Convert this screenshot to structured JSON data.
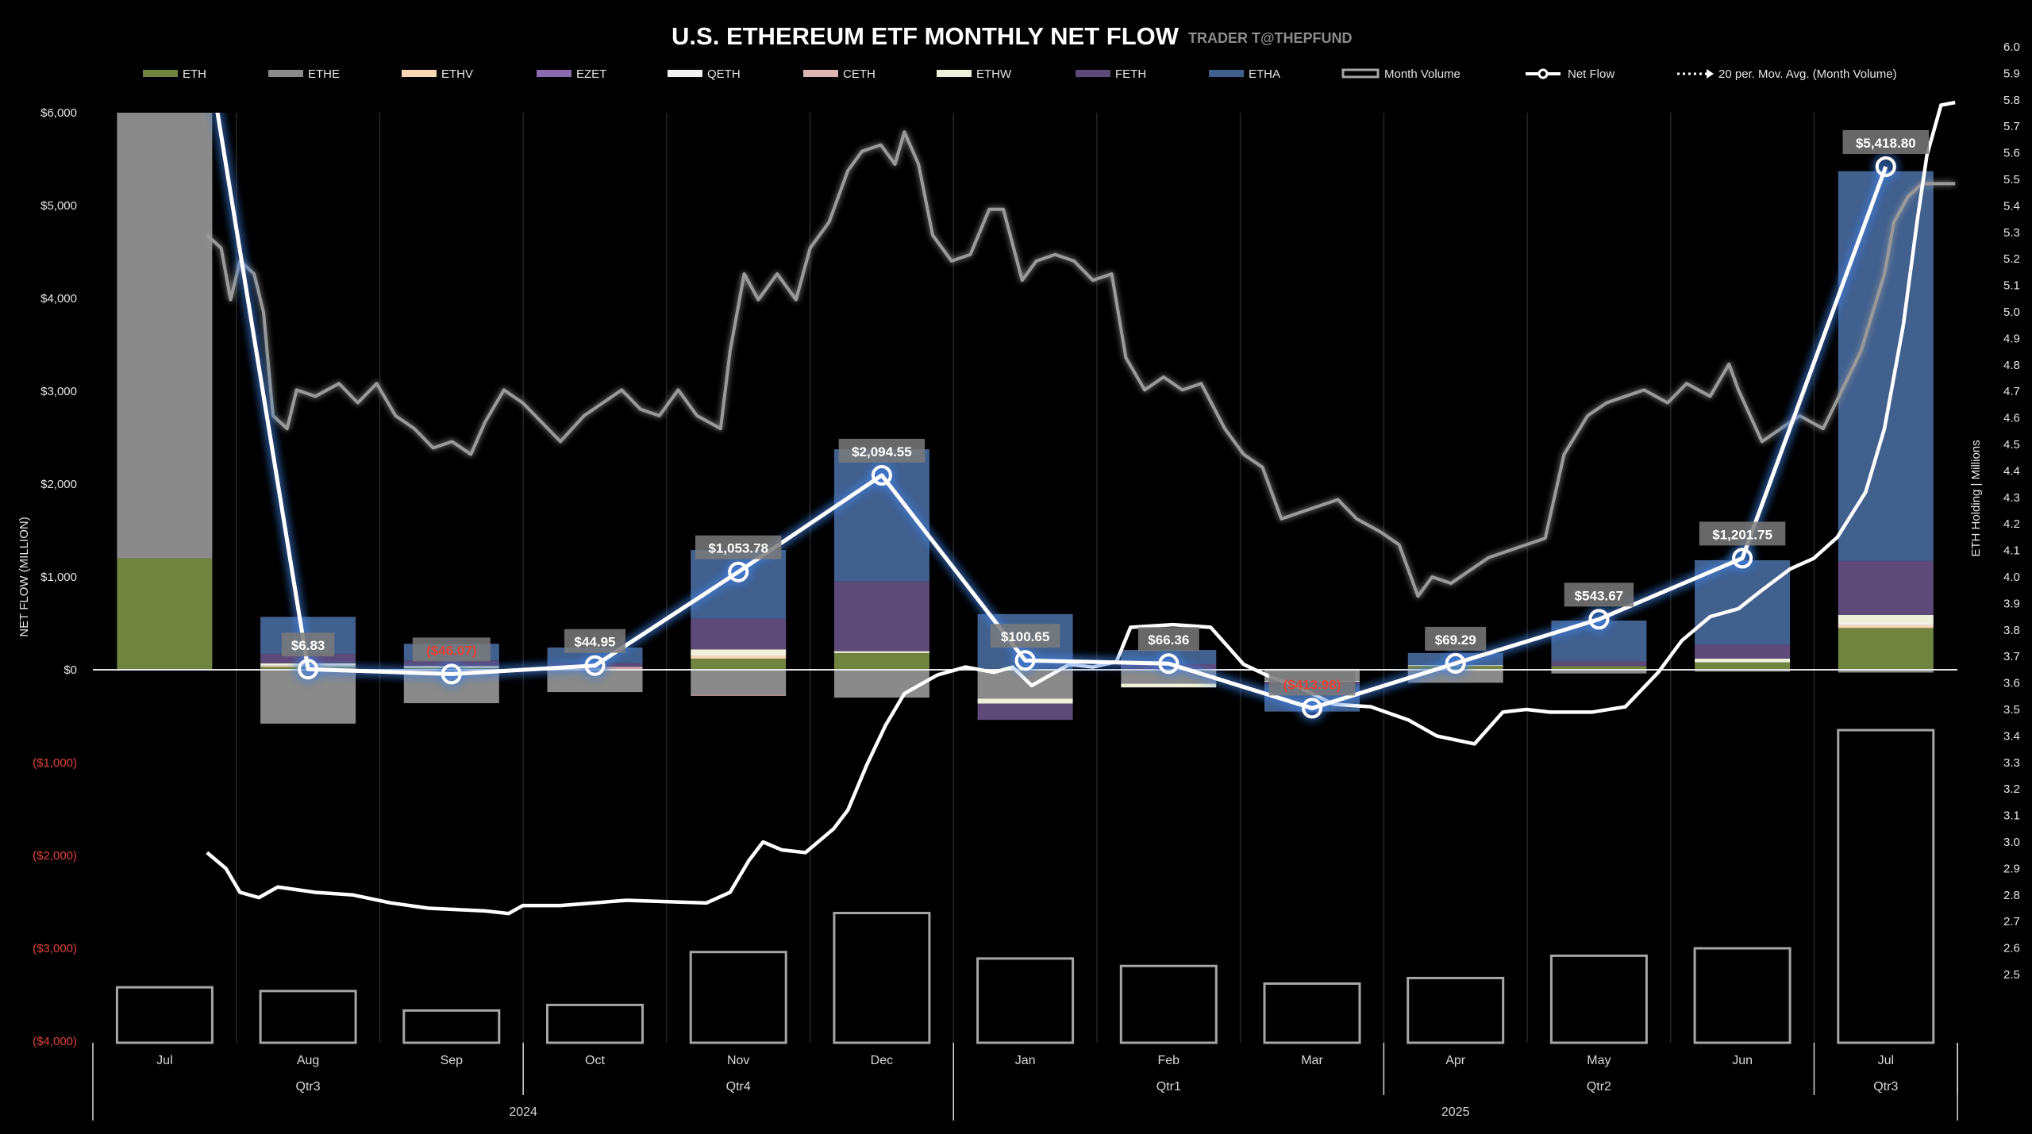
{
  "title": "U.S. ETHEREUM ETF MONTHLY NET FLOW",
  "subtitle": "TRADER T@THEPFUND",
  "chart_data": {
    "type": "bar",
    "categories": [
      "Jul",
      "Aug",
      "Sep",
      "Oct",
      "Nov",
      "Dec",
      "Jan",
      "Feb",
      "Mar",
      "Apr",
      "May",
      "Jun",
      "Jul"
    ],
    "quarters": [
      {
        "label": "Qtr3",
        "months": 3
      },
      {
        "label": "Qtr4",
        "months": 3
      },
      {
        "label": "Qtr1",
        "months": 3
      },
      {
        "label": "Qtr2",
        "months": 3
      },
      {
        "label": "Qtr3",
        "months": 1
      }
    ],
    "years": [
      {
        "label": "2024",
        "months": 6
      },
      {
        "label": "2025",
        "months": 7
      }
    ],
    "ylabel": "NET FLOW (MILLION)",
    "ylim": [
      -4000,
      6000
    ],
    "yticks": [
      6000,
      5000,
      4000,
      3000,
      2000,
      1000,
      0,
      -1000,
      -2000,
      -3000,
      -4000
    ],
    "ytick_labels": [
      "$6,000",
      "$5,000",
      "$4,000",
      "$3,000",
      "$2,000",
      "$1,000",
      "$0",
      "($1,000)",
      "($2,000)",
      "($3,000)",
      "($4,000)"
    ],
    "y2label": "ETH Holding | Millions",
    "y2lim": [
      2.5,
      6.0
    ],
    "y2tick_labels": [
      "6.0",
      "5.9",
      "5.8",
      "5.7",
      "5.6",
      "5.5",
      "5.4",
      "5.3",
      "5.2",
      "5.1",
      "5.0",
      "4.9",
      "4.8",
      "4.7",
      "4.6",
      "4.5",
      "4.4",
      "4.3",
      "4.2",
      "4.1",
      "4.0",
      "3.9",
      "3.8",
      "3.7",
      "3.6",
      "3.5",
      "3.4",
      "3.3",
      "3.2",
      "3.1",
      "3.0",
      "2.9",
      "2.8",
      "2.7",
      "2.6",
      "2.5"
    ],
    "legend_position": "top",
    "grid": false,
    "series": [
      {
        "name": "ETH",
        "color": "#70843f",
        "values": [
          1200,
          30,
          20,
          10,
          120,
          180,
          0,
          0,
          10,
          40,
          40,
          80,
          450
        ]
      },
      {
        "name": "ETHE",
        "color": "#8a8a8a",
        "values": [
          4800,
          -580,
          -360,
          -240,
          -270,
          -300,
          -310,
          -150,
          -120,
          -140,
          -40,
          -20,
          -30
        ]
      },
      {
        "name": "ETHV",
        "color": "#f7d5b5",
        "values": [
          0,
          10,
          0,
          0,
          30,
          0,
          0,
          0,
          0,
          0,
          0,
          0,
          30
        ]
      },
      {
        "name": "EZET",
        "color": "#8a6bb0",
        "values": [
          0,
          0,
          0,
          0,
          0,
          0,
          0,
          0,
          0,
          0,
          0,
          0,
          0
        ]
      },
      {
        "name": "QETH",
        "color": "#f2f2f2",
        "values": [
          0,
          10,
          0,
          0,
          0,
          0,
          0,
          0,
          0,
          0,
          0,
          0,
          20
        ]
      },
      {
        "name": "CETH",
        "color": "#dcb4b4",
        "values": [
          0,
          0,
          0,
          20,
          -10,
          0,
          0,
          0,
          0,
          0,
          0,
          0,
          0
        ]
      },
      {
        "name": "ETHW",
        "color": "#eff0dc",
        "values": [
          0,
          20,
          20,
          0,
          70,
          20,
          -55,
          -40,
          -10,
          10,
          0,
          40,
          90
        ]
      },
      {
        "name": "FETH",
        "color": "#5d4a78",
        "values": [
          0,
          100,
          60,
          40,
          330,
          750,
          -175,
          60,
          -30,
          0,
          50,
          150,
          580
        ]
      },
      {
        "name": "ETHA",
        "color": "#42608e",
        "values": [
          0,
          400,
          180,
          170,
          740,
          1425,
          600,
          154,
          -290,
          130,
          440,
          910,
          4200
        ]
      }
    ],
    "month_volume": {
      "name": "Month Volume",
      "values": [
        580,
        540,
        330,
        390,
        960,
        1380,
        890,
        810,
        620,
        680,
        920,
        1000,
        3350
      ]
    },
    "net_flow": {
      "name": "Net Flow",
      "values": [
        9500,
        6.83,
        -46.07,
        44.95,
        1053.78,
        2094.55,
        100.65,
        66.36,
        -413.98,
        69.29,
        543.67,
        1201.75,
        5418.8
      ],
      "labels": [
        null,
        "$6.83",
        "($46.07)",
        "$44.95",
        "$1,053.78",
        "$2,094.55",
        "$100.65",
        "$66.36",
        "($413.98)",
        "$69.29",
        "$543.67",
        "$1,201.75",
        "$5,418.80"
      ]
    },
    "moving_average": {
      "name": "20 per. Mov. Avg. (Month Volume)",
      "points": [
        [
          "2024-07-24",
          4681
        ],
        [
          "2024-07-27",
          4542
        ],
        [
          "2024-07-29",
          3986
        ],
        [
          "2024-07-31",
          4403
        ],
        [
          "2024-08-03",
          4264
        ],
        [
          "2024-08-05",
          3847
        ],
        [
          "2024-08-07",
          2736
        ],
        [
          "2024-08-10",
          2597
        ],
        [
          "2024-08-12",
          3014
        ],
        [
          "2024-08-16",
          2945
        ],
        [
          "2024-08-21",
          3083
        ],
        [
          "2024-08-25",
          2875
        ],
        [
          "2024-08-29",
          3083
        ],
        [
          "2024-09-02",
          2736
        ],
        [
          "2024-09-06",
          2597
        ],
        [
          "2024-09-10",
          2389
        ],
        [
          "2024-09-14",
          2458
        ],
        [
          "2024-09-18",
          2320
        ],
        [
          "2024-09-21",
          2667
        ],
        [
          "2024-09-25",
          3014
        ],
        [
          "2024-09-29",
          2875
        ],
        [
          "2024-10-03",
          2667
        ],
        [
          "2024-10-07",
          2458
        ],
        [
          "2024-10-12",
          2736
        ],
        [
          "2024-10-16",
          2875
        ],
        [
          "2024-10-20",
          3014
        ],
        [
          "2024-10-24",
          2806
        ],
        [
          "2024-10-28",
          2736
        ],
        [
          "2024-11-01",
          3014
        ],
        [
          "2024-11-05",
          2736
        ],
        [
          "2024-11-10",
          2597
        ],
        [
          "2024-11-12",
          3431
        ],
        [
          "2024-11-15",
          4264
        ],
        [
          "2024-11-18",
          3986
        ],
        [
          "2024-11-22",
          4264
        ],
        [
          "2024-11-26",
          3986
        ],
        [
          "2024-11-29",
          4542
        ],
        [
          "2024-12-03",
          4820
        ],
        [
          "2024-12-07",
          5375
        ],
        [
          "2024-12-10",
          5584
        ],
        [
          "2024-12-14",
          5653
        ],
        [
          "2024-12-17",
          5445
        ],
        [
          "2024-12-19",
          5792
        ],
        [
          "2024-12-22",
          5445
        ],
        [
          "2024-12-25",
          4681
        ],
        [
          "2024-12-29",
          4403
        ],
        [
          "2025-01-02",
          4472
        ],
        [
          "2025-01-06",
          4959
        ],
        [
          "2025-01-09",
          4959
        ],
        [
          "2025-01-13",
          4195
        ],
        [
          "2025-01-16",
          4403
        ],
        [
          "2025-01-20",
          4472
        ],
        [
          "2025-01-24",
          4403
        ],
        [
          "2025-01-28",
          4195
        ],
        [
          "2025-02-01",
          4264
        ],
        [
          "2025-02-04",
          3361
        ],
        [
          "2025-02-08",
          3014
        ],
        [
          "2025-02-12",
          3153
        ],
        [
          "2025-02-16",
          3014
        ],
        [
          "2025-02-20",
          3083
        ],
        [
          "2025-02-25",
          2597
        ],
        [
          "2025-03-01",
          2320
        ],
        [
          "2025-03-05",
          2181
        ],
        [
          "2025-03-09",
          1625
        ],
        [
          "2025-03-13",
          1695
        ],
        [
          "2025-03-17",
          1764
        ],
        [
          "2025-03-21",
          1833
        ],
        [
          "2025-03-25",
          1625
        ],
        [
          "2025-03-30",
          1486
        ],
        [
          "2025-04-03",
          1347
        ],
        [
          "2025-04-07",
          792
        ],
        [
          "2025-04-10",
          1000
        ],
        [
          "2025-04-14",
          931
        ],
        [
          "2025-04-18",
          1070
        ],
        [
          "2025-04-22",
          1208
        ],
        [
          "2025-04-26",
          1278
        ],
        [
          "2025-04-30",
          1347
        ],
        [
          "2025-05-04",
          1417
        ],
        [
          "2025-05-08",
          2320
        ],
        [
          "2025-05-13",
          2736
        ],
        [
          "2025-05-17",
          2875
        ],
        [
          "2025-05-21",
          2945
        ],
        [
          "2025-05-25",
          3014
        ],
        [
          "2025-05-30",
          2875
        ],
        [
          "2025-06-03",
          3083
        ],
        [
          "2025-06-08",
          2945
        ],
        [
          "2025-06-12",
          3292
        ],
        [
          "2025-06-14",
          3014
        ],
        [
          "2025-06-19",
          2458
        ],
        [
          "2025-06-23",
          2597
        ],
        [
          "2025-06-27",
          2736
        ],
        [
          "2025-07-02",
          2597
        ],
        [
          "2025-07-06",
          3014
        ],
        [
          "2025-07-10",
          3431
        ],
        [
          "2025-07-15",
          4264
        ],
        [
          "2025-07-17",
          4820
        ],
        [
          "2025-07-20",
          5097
        ],
        [
          "2025-07-23",
          5236
        ],
        [
          "2025-07-27",
          5236
        ],
        [
          "2025-07-30",
          5236
        ]
      ]
    },
    "eth_holding": {
      "axis": "right",
      "points": [
        [
          "2024-07-24",
          2.96
        ],
        [
          "2024-07-28",
          2.9
        ],
        [
          "2024-07-31",
          2.81
        ],
        [
          "2024-08-04",
          2.79
        ],
        [
          "2024-08-08",
          2.83
        ],
        [
          "2024-08-16",
          2.81
        ],
        [
          "2024-08-24",
          2.8
        ],
        [
          "2024-09-01",
          2.77
        ],
        [
          "2024-09-09",
          2.75
        ],
        [
          "2024-09-21",
          2.74
        ],
        [
          "2024-09-26",
          2.73
        ],
        [
          "2024-09-29",
          2.76
        ],
        [
          "2024-10-07",
          2.76
        ],
        [
          "2024-10-21",
          2.78
        ],
        [
          "2024-11-07",
          2.77
        ],
        [
          "2024-11-12",
          2.81
        ],
        [
          "2024-11-16",
          2.93
        ],
        [
          "2024-11-19",
          3.0
        ],
        [
          "2024-11-23",
          2.97
        ],
        [
          "2024-11-28",
          2.96
        ],
        [
          "2024-12-04",
          3.05
        ],
        [
          "2024-12-07",
          3.12
        ],
        [
          "2024-12-11",
          3.29
        ],
        [
          "2024-12-15",
          3.44
        ],
        [
          "2024-12-19",
          3.56
        ],
        [
          "2024-12-26",
          3.63
        ],
        [
          "2025-01-01",
          3.66
        ],
        [
          "2025-01-07",
          3.64
        ],
        [
          "2025-01-11",
          3.66
        ],
        [
          "2025-01-15",
          3.59
        ],
        [
          "2025-01-17",
          3.61
        ],
        [
          "2025-01-23",
          3.67
        ],
        [
          "2025-01-28",
          3.66
        ],
        [
          "2025-02-02",
          3.68
        ],
        [
          "2025-02-05",
          3.81
        ],
        [
          "2025-02-14",
          3.82
        ],
        [
          "2025-02-22",
          3.81
        ],
        [
          "2025-02-26",
          3.73
        ],
        [
          "2025-03-01",
          3.67
        ],
        [
          "2025-03-07",
          3.62
        ],
        [
          "2025-03-12",
          3.59
        ],
        [
          "2025-03-20",
          3.52
        ],
        [
          "2025-03-28",
          3.51
        ],
        [
          "2025-04-05",
          3.46
        ],
        [
          "2025-04-11",
          3.4
        ],
        [
          "2025-04-19",
          3.37
        ],
        [
          "2025-04-25",
          3.49
        ],
        [
          "2025-04-30",
          3.5
        ],
        [
          "2025-05-05",
          3.49
        ],
        [
          "2025-05-14",
          3.49
        ],
        [
          "2025-05-21",
          3.51
        ],
        [
          "2025-05-28",
          3.64
        ],
        [
          "2025-06-02",
          3.76
        ],
        [
          "2025-06-08",
          3.85
        ],
        [
          "2025-06-14",
          3.88
        ],
        [
          "2025-06-19",
          3.95
        ],
        [
          "2025-06-25",
          4.03
        ],
        [
          "2025-06-30",
          4.07
        ],
        [
          "2025-07-05",
          4.15
        ],
        [
          "2025-07-11",
          4.32
        ],
        [
          "2025-07-15",
          4.56
        ],
        [
          "2025-07-19",
          4.95
        ],
        [
          "2025-07-22",
          5.35
        ],
        [
          "2025-07-24",
          5.59
        ],
        [
          "2025-07-27",
          5.78
        ],
        [
          "2025-07-30",
          5.79
        ]
      ]
    }
  }
}
